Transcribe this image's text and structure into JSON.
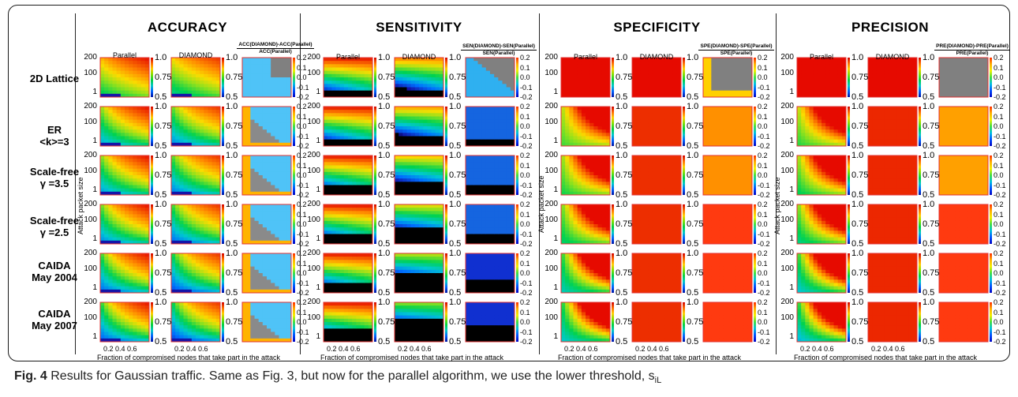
{
  "metrics": [
    {
      "title": "ACCURACY",
      "col1": "Parallel",
      "col2": "DIAMOND",
      "diff_num": "ACC(DIAMOND)-ACC(Parallel)",
      "diff_den": "ACC(Parallel)"
    },
    {
      "title": "SENSITIVITY",
      "col1": "Parallel",
      "col2": "DIAMOND",
      "diff_num": "SEN(DIAMOND)-SEN(Parallel)",
      "diff_den": "SEN(Parallel)"
    },
    {
      "title": "SPECIFICITY",
      "col1": "Parallel",
      "col2": "DIAMOND",
      "diff_num": "SPE(DIAMOND)-SPE(Parallel)",
      "diff_den": "SPE(Parallel)"
    },
    {
      "title": "PRECISION",
      "col1": "Parallel",
      "col2": "DIAMOND",
      "diff_num": "PRE(DIAMOND)-PRE(Parallel)",
      "diff_den": "PRE(Parallel)"
    }
  ],
  "rows": [
    "2D Lattice",
    "ER\n<k>=3",
    "Scale-free\nγ =3.5",
    "Scale-free\nγ =2.5",
    "CAIDA\nMay 2004",
    "CAIDA\nMay 2007"
  ],
  "ylabel": "Attack packet size",
  "xlabel": "Fraction of compromised nodes that take part in the attack",
  "yticks": [
    "200",
    "100",
    "1"
  ],
  "xticks": "0.2 0.4 0.6",
  "cbar_ticks": [
    "1.0",
    "0.75",
    "0.5"
  ],
  "cbar_diff_ticks": [
    "0.2",
    "0.1",
    "0.0",
    "-0.1",
    "-0.2"
  ],
  "caption_label": "Fig. 4",
  "caption_text": "Results for Gaussian traffic. Same as Fig. 3, but now for the parallel algorithm, we use the lower threshold, s",
  "caption_sub": "iL"
}
